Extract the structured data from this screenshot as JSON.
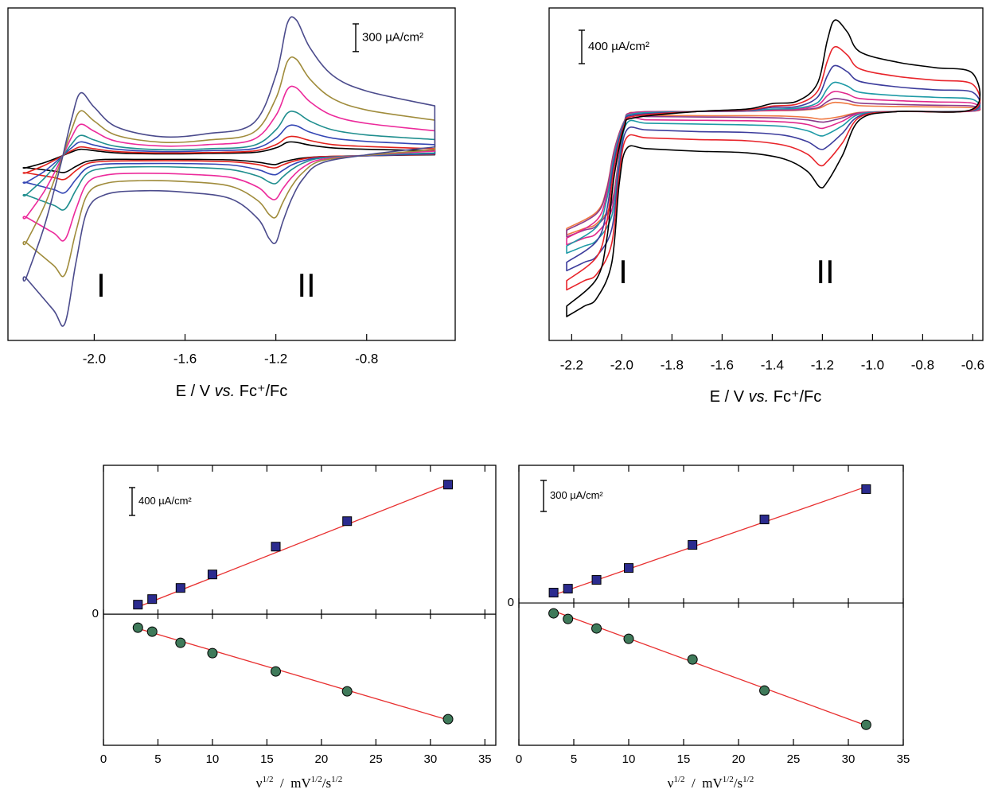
{
  "chart_data": [
    {
      "type": "line",
      "xlabel": [
        {
          "text": "E / V "
        },
        {
          "text": "vs.",
          "style": "italic"
        },
        {
          "text": " Fc⁺/Fc"
        }
      ],
      "xlim": [
        -2.38,
        -0.41
      ],
      "ylim": [
        -2000,
        1600
      ],
      "xticks": [
        {
          "value": -2,
          "label": "-2.0"
        },
        -1.6,
        -1.2,
        -0.8
      ],
      "scale_bar": {
        "value": 300,
        "label": "300 µA/cm²"
      },
      "annotations": [
        "I",
        "II"
      ],
      "x": [
        -0.5,
        -0.8,
        -1.0,
        -1.08,
        -1.13,
        -1.17,
        -1.2,
        -1.23,
        -1.28,
        -1.4,
        -1.6,
        -1.8,
        -1.95,
        -2.03,
        -2.08,
        -2.13,
        -2.18,
        -2.3,
        -2.3,
        -2.22,
        -2.15,
        -2.1,
        -2.06,
        -2.0,
        -1.9,
        -1.7,
        -1.5,
        -1.3,
        -1.2,
        -1.15,
        -1.11,
        -1.05,
        -0.95,
        -0.8,
        -0.5
      ],
      "series": [
        {
          "color": "#000000",
          "values": [
            10,
            0,
            -10,
            -25,
            -45,
            -70,
            -95,
            -90,
            -70,
            -45,
            -40,
            -40,
            -40,
            -60,
            -115,
            -180,
            -165,
            -130,
            -130,
            -75,
            -10,
            40,
            70,
            55,
            30,
            20,
            25,
            35,
            85,
            145,
            145,
            115,
            85,
            70,
            55
          ]
        },
        {
          "color": "#e2211c",
          "values": [
            15,
            0,
            -10,
            -35,
            -65,
            -100,
            -130,
            -125,
            -95,
            -65,
            -55,
            -55,
            -60,
            -85,
            -160,
            -255,
            -235,
            -185,
            -185,
            -105,
            -15,
            55,
            95,
            75,
            45,
            30,
            35,
            50,
            120,
            200,
            205,
            165,
            120,
            100,
            75
          ]
        },
        {
          "color": "#3446b4",
          "values": [
            20,
            0,
            -20,
            -55,
            -100,
            -160,
            -205,
            -195,
            -150,
            -100,
            -85,
            -85,
            -90,
            -130,
            -255,
            -400,
            -365,
            -290,
            -290,
            -170,
            -25,
            85,
            150,
            115,
            70,
            45,
            55,
            75,
            190,
            315,
            325,
            255,
            190,
            155,
            120
          ]
        },
        {
          "color": "#1f8e8e",
          "values": [
            30,
            5,
            -25,
            -80,
            -150,
            -230,
            -300,
            -285,
            -220,
            -150,
            -125,
            -120,
            -135,
            -190,
            -370,
            -580,
            -535,
            -425,
            -425,
            -245,
            -40,
            125,
            220,
            170,
            100,
            65,
            75,
            110,
            280,
            460,
            470,
            375,
            280,
            225,
            175
          ]
        },
        {
          "color": "#ec2a9b",
          "values": [
            50,
            5,
            -40,
            -125,
            -235,
            -360,
            -470,
            -450,
            -340,
            -235,
            -200,
            -190,
            -210,
            -295,
            -575,
            -910,
            -835,
            -665,
            -665,
            -385,
            -60,
            200,
            340,
            265,
            155,
            105,
            120,
            175,
            435,
            715,
            735,
            585,
            435,
            350,
            270
          ]
        },
        {
          "color": "#a08c3c",
          "values": [
            65,
            5,
            -55,
            -180,
            -330,
            -510,
            -665,
            -635,
            -485,
            -330,
            -280,
            -270,
            -300,
            -420,
            -815,
            -1290,
            -1185,
            -940,
            -940,
            -545,
            -85,
            280,
            485,
            375,
            220,
            145,
            170,
            250,
            620,
            1015,
            1045,
            830,
            620,
            495,
            385
          ]
        },
        {
          "color": "#4b4b8c",
          "values": [
            95,
            10,
            -80,
            -250,
            -465,
            -720,
            -940,
            -895,
            -680,
            -465,
            -395,
            -380,
            -420,
            -590,
            -1150,
            -1820,
            -1670,
            -1325,
            -1325,
            -765,
            -120,
            395,
            680,
            525,
            310,
            205,
            240,
            350,
            870,
            1430,
            1470,
            1170,
            870,
            700,
            540
          ]
        }
      ]
    },
    {
      "type": "line",
      "xlabel": [
        {
          "text": "E / V "
        },
        {
          "text": "vs.",
          "style": "italic"
        },
        {
          "text": " Fc⁺/Fc"
        }
      ],
      "xlim": [
        -2.29,
        -0.56
      ],
      "ylim": [
        -2740,
        1240
      ],
      "xticks": [
        -2.2,
        {
          "value": -2,
          "label": "-2.0"
        },
        -1.8,
        -1.6,
        -1.4,
        -1.2,
        {
          "value": -1,
          "label": "-1.0"
        },
        -0.8,
        -0.6
      ],
      "scale_bar": {
        "value": 400,
        "label": "400 µA/cm²"
      },
      "annotations": [
        "I",
        "II"
      ],
      "x": [
        -2.22,
        -2.1,
        -2.06,
        -2.03,
        -1.99,
        -1.95,
        -1.7,
        -1.5,
        -1.4,
        -1.3,
        -1.22,
        -1.18,
        -1.15,
        -1.1,
        -1.05,
        -0.9,
        -0.75,
        -0.6,
        -0.6,
        -0.9,
        -1.05,
        -1.12,
        -1.18,
        -1.21,
        -1.26,
        -1.35,
        -1.5,
        -1.7,
        -1.9,
        -1.98,
        -2.01,
        -2.04,
        -2.1,
        -2.15,
        -2.22
      ],
      "series": [
        {
          "color": "#f07840",
          "values": [
            -1400,
            -1200,
            -915,
            -455,
            -115,
            -10,
            0,
            5,
            10,
            15,
            35,
            85,
            110,
            95,
            70,
            60,
            55,
            45,
            5,
            0,
            -10,
            -55,
            -85,
            -90,
            -70,
            -55,
            -50,
            -50,
            -45,
            -45,
            -515,
            -1085,
            -1340,
            -1400,
            -1475
          ]
        },
        {
          "color": "#8b3a8b",
          "values": [
            -1420,
            -1220,
            -930,
            -465,
            -115,
            -10,
            0,
            5,
            15,
            20,
            45,
            120,
            155,
            135,
            100,
            85,
            75,
            65,
            5,
            0,
            -15,
            -75,
            -120,
            -125,
            -100,
            -80,
            -70,
            -65,
            -60,
            -60,
            -520,
            -1105,
            -1365,
            -1420,
            -1500
          ]
        },
        {
          "color": "#e0288c",
          "values": [
            -1515,
            -1300,
            -990,
            -495,
            -125,
            -15,
            0,
            5,
            20,
            30,
            75,
            190,
            240,
            210,
            155,
            130,
            115,
            100,
            5,
            0,
            -20,
            -115,
            -185,
            -200,
            -155,
            -125,
            -110,
            -105,
            -100,
            -95,
            -555,
            -1175,
            -1455,
            -1515,
            -1595
          ]
        },
        {
          "color": "#1e9aa6",
          "values": [
            -1610,
            -1380,
            -1050,
            -525,
            -130,
            -25,
            0,
            10,
            30,
            40,
            105,
            275,
            350,
            305,
            230,
            190,
            170,
            145,
            10,
            0,
            -30,
            -170,
            -270,
            -290,
            -230,
            -180,
            -160,
            -150,
            -140,
            -140,
            -590,
            -1250,
            -1540,
            -1610,
            -1695
          ]
        },
        {
          "color": "#3c3c9c",
          "values": [
            -1805,
            -1550,
            -1180,
            -590,
            -145,
            -40,
            0,
            15,
            50,
            60,
            170,
            430,
            550,
            475,
            360,
            295,
            260,
            230,
            15,
            0,
            -50,
            -260,
            -420,
            -450,
            -360,
            -285,
            -250,
            -240,
            -220,
            -220,
            -665,
            -1405,
            -1730,
            -1805,
            -1905
          ]
        },
        {
          "color": "#e8242a",
          "values": [
            -2025,
            -1740,
            -1325,
            -660,
            -165,
            -55,
            0,
            20,
            65,
            90,
            240,
            605,
            775,
            675,
            510,
            420,
            375,
            325,
            20,
            0,
            -65,
            -375,
            -595,
            -645,
            -510,
            -405,
            -350,
            -335,
            -315,
            -310,
            -745,
            -1575,
            -1945,
            -2025,
            -2135
          ]
        },
        {
          "color": "#000000",
          "values": [
            -2330,
            -2000,
            -1525,
            -760,
            -190,
            -75,
            0,
            30,
            95,
            125,
            335,
            855,
            1095,
            950,
            715,
            590,
            525,
            455,
            30,
            0,
            -95,
            -525,
            -840,
            -905,
            -715,
            -570,
            -495,
            -475,
            -445,
            -440,
            -855,
            -1810,
            -2235,
            -2330,
            -2455
          ]
        }
      ]
    },
    {
      "type": "scatter",
      "xlabel": [
        {
          "text": "ν"
        },
        {
          "text": "1/2",
          "style": "sup"
        },
        {
          "text": "  /  mV"
        },
        {
          "text": "1/2",
          "style": "sup"
        },
        {
          "text": "/s"
        },
        {
          "text": "1/2",
          "style": "sup"
        }
      ],
      "xlim": [
        0,
        36
      ],
      "ylim": [
        -1885,
        2140
      ],
      "xticks": [
        0,
        5,
        10,
        15,
        20,
        25,
        30,
        35
      ],
      "yticks": [
        0
      ],
      "scale_bar": {
        "value": 400,
        "label": "400 µA/cm²"
      },
      "series": [
        {
          "color": "#e83030",
          "style": "line",
          "x": [
            3.16,
            31.62
          ],
          "values": [
            103,
            1863
          ]
        },
        {
          "color": "#e83030",
          "style": "line",
          "x": [
            3.16,
            31.62
          ],
          "values": [
            -206,
            -1520
          ]
        },
        {
          "color": "#2b2b8f",
          "marker": "square",
          "x": [
            3.16,
            4.47,
            7.07,
            10,
            15.81,
            22.36,
            31.62
          ],
          "values": [
            137,
            217,
            377,
            571,
            971,
            1337,
            1863
          ]
        },
        {
          "color": "#3f7a5a",
          "marker": "circle",
          "x": [
            3.16,
            4.47,
            7.07,
            10,
            15.81,
            22.36,
            31.62
          ],
          "values": [
            -194,
            -251,
            -411,
            -560,
            -823,
            -1109,
            -1509
          ]
        }
      ]
    },
    {
      "type": "scatter",
      "xlabel": [
        {
          "text": "ν"
        },
        {
          "text": "1/2",
          "style": "sup"
        },
        {
          "text": "  /  mV"
        },
        {
          "text": "1/2",
          "style": "sup"
        },
        {
          "text": "/s"
        },
        {
          "text": "1/2",
          "style": "sup"
        }
      ],
      "xlim": [
        0,
        35
      ],
      "ylim": [
        -1375,
        1330
      ],
      "xticks": [
        0,
        5,
        10,
        15,
        20,
        25,
        30,
        35
      ],
      "yticks": [
        0
      ],
      "scale_bar": {
        "value": 300,
        "label": "300 µA/cm²"
      },
      "series": [
        {
          "color": "#e83030",
          "style": "line",
          "x": [
            3.16,
            31.62
          ],
          "values": [
            77,
            1123
          ]
        },
        {
          "color": "#e83030",
          "style": "line",
          "x": [
            3.16,
            31.62
          ],
          "values": [
            -77,
            -1184
          ]
        },
        {
          "color": "#2b2b8f",
          "marker": "square",
          "x": [
            3.16,
            4.47,
            7.07,
            10,
            15.81,
            22.36,
            31.62
          ],
          "values": [
            100,
            138,
            223,
            338,
            561,
            807,
            1100
          ]
        },
        {
          "color": "#3f7a5a",
          "marker": "circle",
          "x": [
            3.16,
            4.47,
            7.07,
            10,
            15.81,
            22.36,
            31.62
          ],
          "values": [
            -100,
            -154,
            -246,
            -346,
            -546,
            -846,
            -1177
          ]
        }
      ]
    }
  ]
}
